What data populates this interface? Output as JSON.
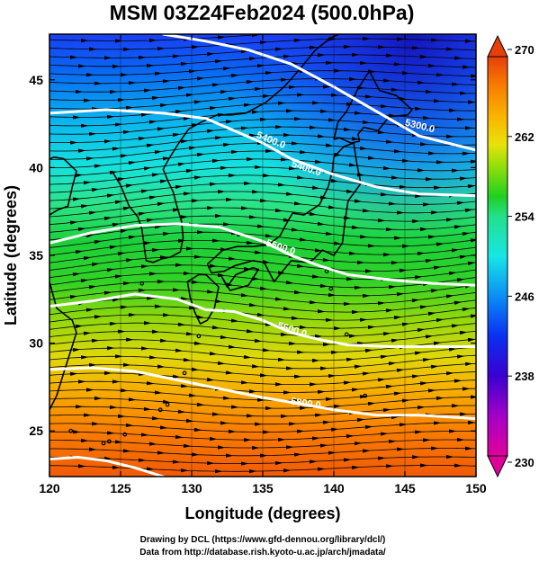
{
  "figure": {
    "title": "MSM 03Z24Feb2024 (500.0hPa)",
    "xlabel": "Longitude (degrees)",
    "ylabel": "Latitude  (degrees)",
    "credit_line1": "Drawing by DCL (https://www.gfd-dennou.org/library/dcl/)",
    "credit_line2": "Data from http://database.rish.kyoto-u.ac.jp/arch/jmadata/"
  },
  "map": {
    "lon_range": [
      120,
      150
    ],
    "lat_range": [
      22.4,
      47.6
    ],
    "x_ticks": [
      "120",
      "125",
      "130",
      "135",
      "140",
      "145",
      "150"
    ],
    "x_tick_values": [
      120,
      125,
      130,
      135,
      140,
      145,
      150
    ],
    "y_ticks": [
      "25",
      "30",
      "35",
      "40",
      "45"
    ],
    "y_tick_values": [
      25,
      30,
      35,
      40,
      45
    ],
    "shading_variable": "temperature (K)",
    "vector_field": "wind streamlines, predominantly westerly",
    "coastline_color": "#000000",
    "contour_color": "#ffffff",
    "contours": [
      {
        "label": "5300.0",
        "value": 5300.0,
        "lon": [
          128,
          131,
          134,
          137,
          140,
          143,
          146,
          150
        ],
        "lat": [
          47.6,
          47.2,
          46.7,
          45.9,
          44.6,
          43.2,
          41.8,
          41.0
        ]
      },
      {
        "label": "5400.0",
        "value": 5400.0,
        "lon": [
          120,
          124,
          128,
          131,
          133,
          135,
          137,
          140,
          143,
          146,
          150
        ],
        "lat": [
          43.1,
          43.3,
          43.1,
          42.8,
          42.1,
          41.4,
          40.5,
          39.6,
          38.9,
          38.5,
          38.4
        ]
      },
      {
        "label": "5500.0",
        "value": 5500.0,
        "lon": [
          120,
          123,
          126,
          129,
          132,
          135,
          137,
          139,
          141,
          144,
          147,
          150
        ],
        "lat": [
          35.7,
          36.3,
          36.7,
          36.8,
          36.6,
          35.8,
          35.0,
          34.4,
          33.9,
          33.6,
          33.4,
          33.3
        ]
      },
      {
        "label": "5600.0",
        "value": 5600.0,
        "lon": [
          120,
          123,
          126,
          129,
          131,
          133,
          135,
          137,
          139,
          141,
          144,
          147,
          150
        ],
        "lat": [
          32.1,
          32.4,
          32.8,
          32.5,
          31.9,
          31.8,
          31.3,
          30.6,
          30.2,
          29.9,
          29.8,
          29.8,
          29.8
        ]
      },
      {
        "label": "5800.0",
        "value": 5800.0,
        "lon": [
          120,
          123,
          126,
          129,
          132,
          135,
          138,
          140,
          143,
          146,
          150
        ],
        "lat": [
          28.5,
          28.6,
          28.4,
          27.9,
          27.4,
          26.9,
          26.5,
          26.2,
          25.9,
          25.9,
          25.7
        ]
      },
      {
        "label": "",
        "value": 5850.0,
        "lon": [
          120,
          122,
          124,
          126,
          128
        ],
        "lat": [
          23.4,
          23.5,
          23.3,
          22.9,
          22.4
        ]
      }
    ],
    "contour_labels": [
      {
        "text": "5300.0",
        "lon": 146.0,
        "lat": 42.2,
        "angle": 14
      },
      {
        "text": "5400.0",
        "lon": 135.5,
        "lat": 41.4,
        "angle": 22
      },
      {
        "text": "5400.0",
        "lon": 138.0,
        "lat": 39.8,
        "angle": 18
      },
      {
        "text": "5500.0",
        "lon": 136.2,
        "lat": 35.3,
        "angle": 18
      },
      {
        "text": "5600.0",
        "lon": 137.0,
        "lat": 30.6,
        "angle": 18
      },
      {
        "text": "5800.0",
        "lon": 138.0,
        "lat": 26.4,
        "angle": 8
      }
    ],
    "coastlines": [
      {
        "name": "korea",
        "lon": [
          124.4,
          125.0,
          125.6,
          126.2,
          126.5,
          126.8,
          127.3,
          127.9,
          128.5,
          129.2,
          129.4,
          129.3,
          129.0,
          128.7,
          128.3,
          128.0,
          128.4,
          129.1,
          129.8
        ],
        "lat": [
          39.8,
          39.0,
          37.8,
          37.2,
          36.5,
          34.7,
          34.6,
          34.8,
          34.9,
          35.2,
          36.0,
          36.9,
          37.7,
          38.6,
          39.3,
          39.9,
          40.5,
          41.4,
          42.2
        ]
      },
      {
        "name": "china-coast",
        "lon": [
          120.0,
          120.6,
          121.3,
          121.6,
          121.9,
          121.0,
          120.3,
          119.8
        ],
        "lat": [
          37.3,
          37.6,
          37.8,
          38.9,
          39.8,
          40.5,
          40.6,
          40.4
        ]
      },
      {
        "name": "china-east",
        "lon": [
          120.0,
          120.5,
          121.6,
          121.9,
          121.0,
          120.5,
          120.0
        ],
        "lat": [
          33.5,
          32.0,
          31.3,
          30.6,
          28.3,
          27.0,
          26.2
        ]
      },
      {
        "name": "russia-coast",
        "lon": [
          129.8,
          130.7,
          131.8,
          132.8,
          133.8,
          135.2,
          136.5,
          137.6,
          138.7,
          139.8,
          140.4,
          140.5
        ],
        "lat": [
          42.2,
          42.6,
          43.0,
          43.0,
          43.1,
          43.7,
          44.6,
          45.6,
          46.7,
          47.4,
          47.6,
          47.6
        ]
      },
      {
        "name": "hokkaido",
        "lon": [
          140.0,
          140.3,
          140.9,
          141.7,
          142.5,
          143.2,
          144.4,
          145.5,
          145.2,
          143.9,
          143.1,
          142.1,
          141.7,
          141.8,
          141.2,
          140.4,
          140.0
        ],
        "lat": [
          41.6,
          42.6,
          43.2,
          44.5,
          45.5,
          44.4,
          44.1,
          43.3,
          43.0,
          42.9,
          42.1,
          42.3,
          41.9,
          41.5,
          41.4,
          41.7,
          41.6
        ]
      },
      {
        "name": "honshu-sea",
        "lon": [
          141.4,
          140.7,
          140.0,
          139.9,
          139.6,
          139.0,
          137.9,
          137.1,
          136.8,
          136.2,
          135.4,
          134.3,
          133.2,
          132.2,
          131.1
        ],
        "lat": [
          41.4,
          41.2,
          40.6,
          39.8,
          38.9,
          37.9,
          37.3,
          37.4,
          37.0,
          36.1,
          35.6,
          35.5,
          35.5,
          35.3,
          34.5
        ]
      },
      {
        "name": "honshu-pacific",
        "lon": [
          141.4,
          141.6,
          141.9,
          141.0,
          140.8,
          140.6,
          140.0,
          139.2,
          138.6,
          138.2,
          137.0,
          136.7,
          135.8,
          135.1,
          134.3,
          133.0,
          132.3,
          131.4,
          131.1
        ],
        "lat": [
          41.4,
          40.3,
          39.1,
          38.1,
          37.0,
          35.7,
          35.0,
          35.3,
          34.8,
          34.6,
          34.7,
          34.4,
          33.5,
          34.6,
          34.7,
          34.4,
          34.1,
          34.0,
          34.5
        ]
      },
      {
        "name": "shikoku",
        "lon": [
          132.1,
          132.7,
          134.0,
          134.7,
          134.3,
          133.1,
          132.5,
          132.1
        ],
        "lat": [
          33.8,
          33.0,
          33.3,
          34.2,
          34.3,
          33.9,
          33.2,
          33.8
        ]
      },
      {
        "name": "kyushu",
        "lon": [
          129.7,
          130.5,
          131.0,
          131.9,
          131.6,
          131.1,
          130.6,
          130.2,
          129.9,
          129.7
        ],
        "lat": [
          33.5,
          33.9,
          33.9,
          33.2,
          32.0,
          31.3,
          31.1,
          31.8,
          32.6,
          33.5
        ]
      }
    ],
    "islands": [
      {
        "lon": 128.3,
        "lat": 26.5
      },
      {
        "lon": 127.8,
        "lat": 26.2
      },
      {
        "lon": 129.5,
        "lat": 28.3
      },
      {
        "lon": 130.5,
        "lat": 30.4
      },
      {
        "lon": 125.3,
        "lat": 24.8
      },
      {
        "lon": 124.2,
        "lat": 24.4
      },
      {
        "lon": 123.8,
        "lat": 24.3
      },
      {
        "lon": 126.5,
        "lat": 33.4
      },
      {
        "lon": 139.5,
        "lat": 34.1
      },
      {
        "lon": 139.8,
        "lat": 33.1
      },
      {
        "lon": 142.2,
        "lat": 27.0
      },
      {
        "lon": 140.9,
        "lat": 30.5
      },
      {
        "lon": 121.5,
        "lat": 25.0
      },
      {
        "lon": 133.3,
        "lat": 36.2
      }
    ]
  },
  "colorbar": {
    "min": 230,
    "max": 270,
    "labels": [
      "270",
      "262",
      "254",
      "246",
      "238",
      "230"
    ],
    "label_values": [
      270,
      262,
      254,
      246,
      238,
      230
    ],
    "colors": [
      "#e0009a",
      "#a500c8",
      "#3a00d0",
      "#0a2ff0",
      "#0a8ef5",
      "#17e6e6",
      "#22e08a",
      "#20d020",
      "#8ade0a",
      "#e8e20a",
      "#fbb400",
      "#f87a00",
      "#e63f0a"
    ]
  }
}
